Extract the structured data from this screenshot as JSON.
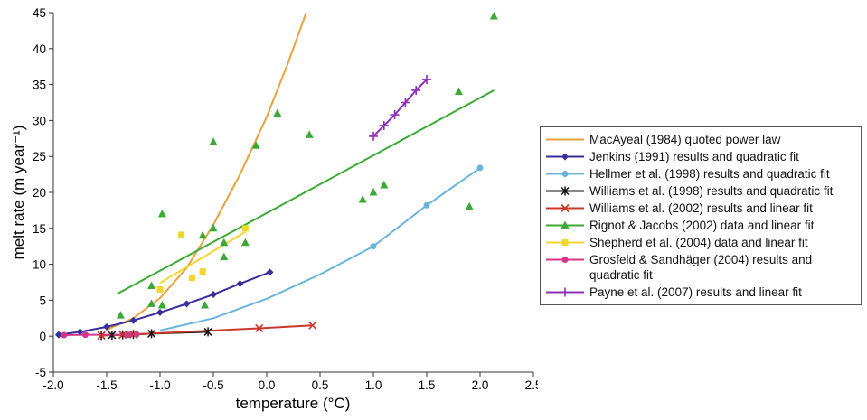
{
  "chart_data": {
    "type": "line",
    "xlabel": "temperature (°C)",
    "ylabel": "melt rate (m year⁻¹)",
    "xlim": [
      -2.0,
      2.5
    ],
    "ylim": [
      -5,
      45
    ],
    "xticks": [
      {
        "value": -2.0,
        "label": "-2.0"
      },
      -1.5,
      {
        "value": -1.0,
        "label": "-1.0"
      },
      -0.5,
      {
        "value": 0.0,
        "label": "0.0"
      },
      0.5,
      {
        "value": 1.0,
        "label": "1.0"
      },
      1.5,
      {
        "value": 2.0,
        "label": "2.0"
      },
      2.5
    ],
    "yticks": [
      -5,
      0,
      5,
      10,
      15,
      20,
      25,
      30,
      35,
      40,
      45
    ],
    "grid": false,
    "series": [
      {
        "name": "MacAyeal (1984) quoted power law",
        "color": "#e8a33d",
        "marker": "none",
        "line": true,
        "x": [
          -1.5,
          -1.25,
          -1.0,
          -0.75,
          -0.5,
          -0.25,
          0.0,
          0.2,
          0.37
        ],
        "values": [
          0.9,
          2.5,
          5.3,
          9.5,
          15.5,
          22.5,
          30.5,
          38,
          45
        ]
      },
      {
        "name": "Jenkins (1991) results and quadratic fit",
        "color": "#3a2d9c",
        "marker": "diamond",
        "line": true,
        "x": [
          -1.95,
          -1.75,
          -1.5,
          -1.25,
          -1.0,
          -0.75,
          -0.5,
          -0.25,
          0.03
        ],
        "values": [
          0.2,
          0.6,
          1.3,
          2.2,
          3.3,
          4.5,
          5.8,
          7.3,
          8.9
        ]
      },
      {
        "name": "Hellmer et al. (1998) results and quadratic fit",
        "color": "#6ab4dc",
        "marker": "circle",
        "line": false,
        "x": [
          1.0,
          1.5,
          2.0
        ],
        "values": [
          12.5,
          18.2,
          23.4
        ],
        "fit_x": [
          -1.0,
          -0.5,
          0.0,
          0.5,
          1.0,
          1.5,
          2.0
        ],
        "fit_values": [
          0.8,
          2.5,
          5.2,
          8.6,
          12.5,
          18.2,
          23.4
        ]
      },
      {
        "name": "Williams et al. (1998) results and quadratic fit",
        "color": "#111111",
        "marker": "asterisk",
        "line": true,
        "x": [
          -1.55,
          -1.45,
          -1.35,
          -1.25,
          -1.08,
          -0.55
        ],
        "values": [
          0.1,
          0.15,
          0.2,
          0.25,
          0.35,
          0.6
        ]
      },
      {
        "name": "Williams et al. (2002) results and linear fit",
        "color": "#c8392b",
        "marker": "cross",
        "line": true,
        "x": [
          -1.55,
          -1.35,
          -1.25,
          -0.07,
          0.43
        ],
        "values": [
          0.1,
          0.2,
          0.25,
          1.1,
          1.5
        ]
      },
      {
        "name": "Rignot & Jacobs (2002) data and linear fit",
        "color": "#3aaa35",
        "marker": "triangle",
        "line": false,
        "x": [
          -1.37,
          -1.08,
          -1.08,
          -0.98,
          -0.98,
          -0.6,
          -0.58,
          -0.5,
          -0.5,
          -0.4,
          -0.4,
          -0.2,
          -0.1,
          0.1,
          0.4,
          0.9,
          1.0,
          1.1,
          1.8,
          1.9,
          2.13
        ],
        "values": [
          2.9,
          7,
          4.5,
          4.3,
          17,
          14,
          4.3,
          27,
          15,
          13,
          11,
          13,
          26.5,
          31,
          28,
          19,
          20,
          21,
          34,
          18,
          44.5
        ],
        "fit_x": [
          -1.4,
          2.13
        ],
        "fit_values": [
          5.9,
          34.2
        ]
      },
      {
        "name": "Shepherd et al. (2004) data and linear fit",
        "color": "#f2d52e",
        "marker": "square",
        "line": false,
        "x": [
          -1.0,
          -0.8,
          -0.7,
          -0.6,
          -0.2
        ],
        "values": [
          6.5,
          14.1,
          8.1,
          9.0,
          15
        ],
        "fit_x": [
          -1.0,
          -0.2
        ],
        "fit_values": [
          7.4,
          14.5
        ]
      },
      {
        "name": "Grosfeld & Sandhäger (2004) results and quadratic fit",
        "color": "#d6358a",
        "marker": "circle",
        "line": true,
        "x": [
          -1.9,
          -1.7,
          -1.3,
          -1.22
        ],
        "values": [
          0.15,
          0.2,
          0.2,
          0.25
        ]
      },
      {
        "name": "Payne et al. (2007) results and linear fit",
        "color": "#8e2fb5",
        "marker": "plus",
        "line": true,
        "x": [
          1.0,
          1.1,
          1.2,
          1.3,
          1.4,
          1.5
        ],
        "values": [
          27.8,
          29.3,
          30.8,
          32.5,
          34.2,
          35.7
        ]
      }
    ]
  }
}
